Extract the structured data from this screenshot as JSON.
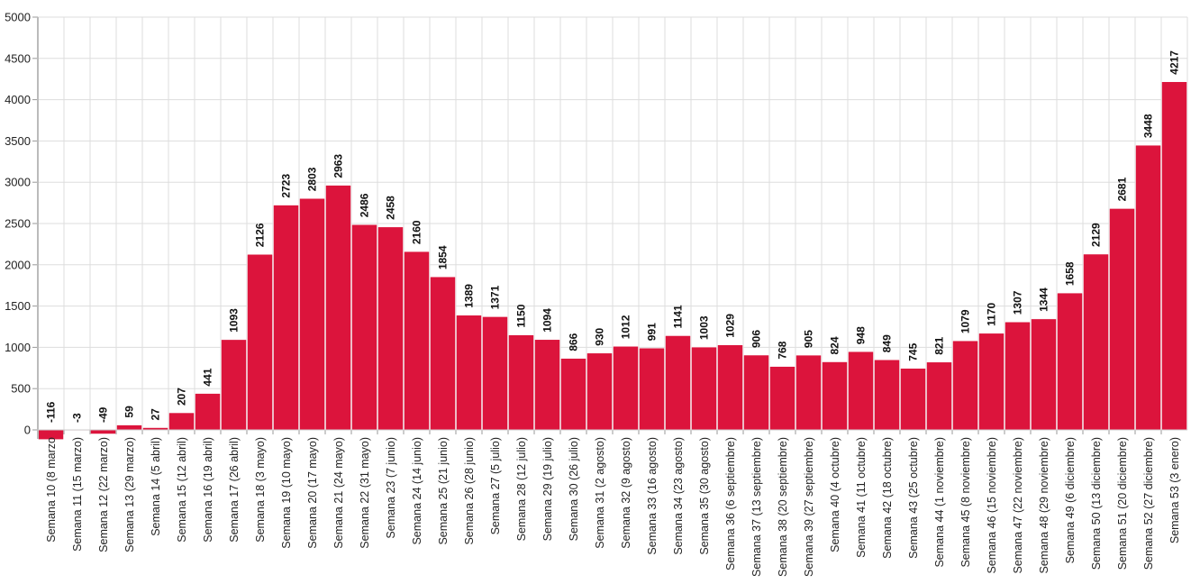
{
  "chart_data": {
    "type": "bar",
    "title": "",
    "xlabel": "",
    "ylabel": "",
    "ylim": [
      0,
      5000
    ],
    "yticks": [
      0,
      500,
      1000,
      1500,
      2000,
      2500,
      3000,
      3500,
      4000,
      4500,
      5000
    ],
    "grid": true,
    "legend": null,
    "bar_color": "#dc143c",
    "categories": [
      "Semana 10 (8 marzo",
      "Semana 11 (15 marzo)",
      "Semana 12 (22 marzo)",
      "Semana 13 (29 marzo)",
      "Semana 14 (5 abril)",
      "Semana 15 (12 abril)",
      "Semana 16 (19 abril)",
      "Semana 17 (26 abril)",
      "Semana 18 (3 mayo)",
      "Semana 19 (10 mayo)",
      "Semana 20 (17 mayo)",
      "Semana 21 (24 mayo)",
      "Semana 22 (31 mayo)",
      "Semana 23 (7 junio)",
      "Semana 24 (14 junio)",
      "Semana 25 (21 junio)",
      "Semana 26 (28 junio)",
      "Semana 27 (5 julio)",
      "Semana 28 (12 julio)",
      "Semana 29 (19 julio)",
      "Semana 30 (26 julio)",
      "Semana 31 (2 agosto)",
      "Semana 32 (9 agosto)",
      "Semana 33 (16 agosto)",
      "Semana 34 (23 agosto)",
      "Semana 35 (30 agosto)",
      "Semana 36 (6 septiembre)",
      "Semana 37 (13 septiembre)",
      "Semana 38 (20 septiembre)",
      "Semana 39 (27 septiembre)",
      "Semana 40 (4 octubre)",
      "Semana 41 (11 octubre)",
      "Semana 42 (18 octubre)",
      "Semana 43 (25 octubre)",
      "Semana 44 (1 noviembre)",
      "Semana 45 (8 noviembre)",
      "Semana 46 (15 noviembre)",
      "Semana 47 (22 noviembre)",
      "Semana 48 (29 noviembre)",
      "Semana 49 (6 diciembre)",
      "Semana 50 (13 diciembre)",
      "Semana 51 (20 diciembre)",
      "Semana 52 (27 diciembre)",
      "Semana 53 (3 enero)"
    ],
    "values": [
      -116,
      -3,
      -49,
      59,
      27,
      207,
      441,
      1093,
      2126,
      2723,
      2803,
      2963,
      2486,
      2458,
      2160,
      1854,
      1389,
      1371,
      1150,
      1094,
      866,
      930,
      1012,
      991,
      1141,
      1003,
      1029,
      906,
      768,
      905,
      824,
      948,
      849,
      745,
      821,
      1079,
      1170,
      1307,
      1344,
      1658,
      2129,
      2681,
      3448,
      4217
    ]
  }
}
